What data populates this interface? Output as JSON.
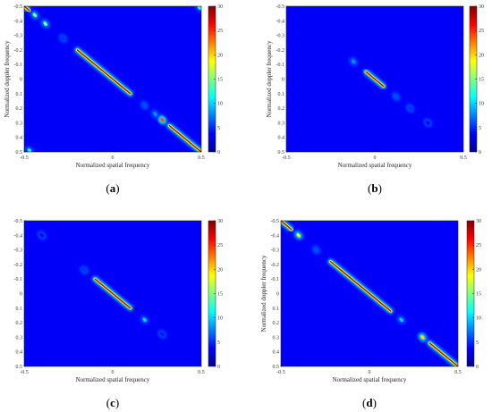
{
  "chart_data": [
    {
      "type": "heatmap",
      "caption": {
        "open": "(",
        "letter": "a",
        "close": ")"
      },
      "xlabel": "Normalized spatial frequency",
      "ylabel": "Normalized doppler frequency",
      "xlim": [
        -0.5,
        0.5
      ],
      "ylim": [
        -0.5,
        0.5
      ],
      "y_reversed": true,
      "x_ticks": [
        "-0.5",
        "0",
        "0.5"
      ],
      "y_ticks": [
        "-0.5",
        "-0.4",
        "-0.3",
        "-0.2",
        "-0.1",
        "0",
        "0.1",
        "0.2",
        "0.3",
        "0.4",
        "0.5"
      ],
      "colorbar": {
        "min": 0,
        "max": 30,
        "ticks": [
          "0",
          "5",
          "10",
          "15",
          "20",
          "25",
          "30"
        ]
      },
      "ridge": [
        {
          "from": -0.2,
          "to": 0.1,
          "peak": 30
        },
        {
          "from": 0.32,
          "to": 0.5,
          "peak": 30
        },
        {
          "from": -0.5,
          "to": -0.47,
          "peak": 30
        }
      ],
      "spots": [
        {
          "x": -0.44,
          "y": -0.44,
          "peak": 15
        },
        {
          "x": -0.38,
          "y": -0.38,
          "peak": 15
        },
        {
          "x": 0.28,
          "y": 0.28,
          "peak": 24
        },
        {
          "x": 0.24,
          "y": 0.24,
          "peak": 8
        },
        {
          "x": -0.28,
          "y": -0.28,
          "peak": 5
        },
        {
          "x": 0.18,
          "y": 0.18,
          "peak": 6
        },
        {
          "x": -0.47,
          "y": 0.49,
          "peak": 12
        },
        {
          "x": 0.49,
          "y": -0.49,
          "peak": 12
        }
      ]
    },
    {
      "type": "heatmap",
      "caption": {
        "open": "(",
        "letter": "b",
        "close": ")"
      },
      "xlabel": "Normalized spatial frequency",
      "ylabel": "Normalized doppler frequency",
      "xlim": [
        -0.5,
        0.5
      ],
      "ylim": [
        -0.5,
        0.5
      ],
      "y_reversed": true,
      "x_ticks": [
        "-0.5",
        "0",
        "0.5"
      ],
      "y_ticks": [
        "-0.5",
        "-0.4",
        "-0.3",
        "-0.2",
        "-0.1",
        "0",
        "0.1",
        "0.2",
        "0.3",
        "0.4",
        "0.5"
      ],
      "colorbar": {
        "min": 0,
        "max": 30,
        "ticks": [
          "0",
          "5",
          "10",
          "15",
          "20",
          "25",
          "30"
        ]
      },
      "ridge": [
        {
          "from": -0.05,
          "to": 0.05,
          "peak": 30
        }
      ],
      "spots": [
        {
          "x": -0.12,
          "y": -0.12,
          "peak": 8
        },
        {
          "x": 0.12,
          "y": 0.12,
          "peak": 6
        },
        {
          "x": 0.2,
          "y": 0.2,
          "peak": 5
        },
        {
          "x": 0.3,
          "y": 0.3,
          "peak": 3
        }
      ]
    },
    {
      "type": "heatmap",
      "caption": {
        "open": "(",
        "letter": "c",
        "close": ")"
      },
      "xlabel": "Normalized spatial frequency",
      "ylabel": "",
      "xlim": [
        -0.5,
        0.5
      ],
      "ylim": [
        -0.5,
        0.5
      ],
      "y_reversed": true,
      "x_ticks": [
        "-0.5",
        "0",
        "0.5"
      ],
      "y_ticks": [
        "-0.5",
        "-0.4",
        "-0.3",
        "-0.2",
        "-0.1",
        "0",
        "0.1",
        "0.2",
        "0.3",
        "0.4",
        "0.5"
      ],
      "colorbar": {
        "min": 0,
        "max": 30,
        "ticks": [
          "0",
          "5",
          "10",
          "15",
          "20",
          "25",
          "30"
        ]
      },
      "ridge": [
        {
          "from": -0.1,
          "to": 0.1,
          "peak": 30
        }
      ],
      "spots": [
        {
          "x": 0.18,
          "y": 0.18,
          "peak": 10
        },
        {
          "x": -0.16,
          "y": -0.16,
          "peak": 5
        },
        {
          "x": 0.28,
          "y": 0.28,
          "peak": 4
        },
        {
          "x": -0.4,
          "y": -0.4,
          "peak": 3
        }
      ]
    },
    {
      "type": "heatmap",
      "caption": {
        "open": "(",
        "letter": "d",
        "close": ")"
      },
      "xlabel": "Normalized spatial frequency",
      "ylabel": "Normalized doppler frequency",
      "xlim": [
        -0.5,
        0.5
      ],
      "ylim": [
        -0.5,
        0.5
      ],
      "y_reversed": true,
      "x_ticks": [
        "-0.5",
        "0",
        "0.5"
      ],
      "y_ticks": [
        "-0.5",
        "-0.4",
        "-0.3",
        "-0.2",
        "-0.1",
        "0",
        "0.1",
        "0.2",
        "0.3",
        "0.4",
        "0.5"
      ],
      "colorbar": {
        "min": 0,
        "max": 30,
        "ticks": [
          "0",
          "5",
          "10",
          "15",
          "20",
          "25",
          "30"
        ]
      },
      "ridge": [
        {
          "from": -0.22,
          "to": 0.12,
          "peak": 30
        },
        {
          "from": 0.34,
          "to": 0.5,
          "peak": 30
        },
        {
          "from": -0.5,
          "to": -0.44,
          "peak": 30
        }
      ],
      "spots": [
        {
          "x": -0.4,
          "y": -0.4,
          "peak": 18
        },
        {
          "x": 0.3,
          "y": 0.3,
          "peak": 20
        },
        {
          "x": 0.18,
          "y": 0.18,
          "peak": 10
        },
        {
          "x": -0.3,
          "y": -0.3,
          "peak": 6
        }
      ]
    }
  ]
}
